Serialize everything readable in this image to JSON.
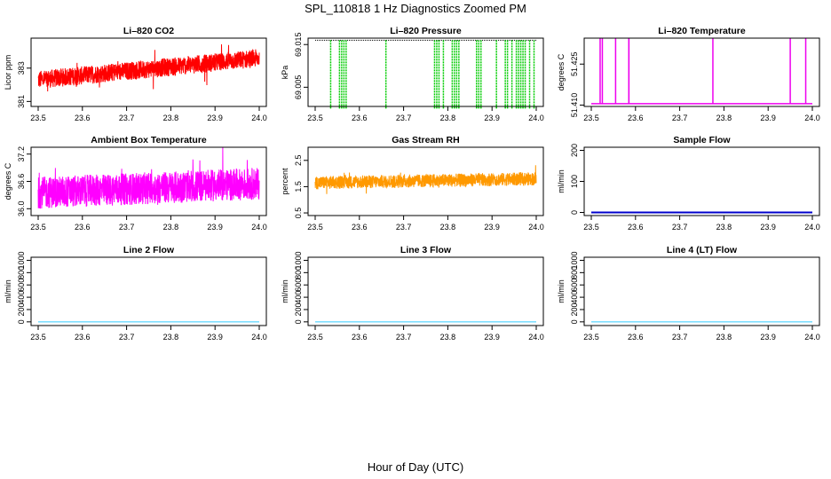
{
  "figure": {
    "title": "SPL_110818  1 Hz Diagnostics Zoomed PM",
    "xlabel": "Hour of Day (UTC)"
  },
  "chart_data": [
    {
      "type": "line",
      "title": "Li–820 CO2",
      "ylabel": "Licor ppm",
      "color": "#ff0000",
      "xlim": [
        23.5,
        24.0
      ],
      "ylim": [
        380.7,
        384.8
      ],
      "xticks": [
        23.5,
        23.6,
        23.7,
        23.8,
        23.9,
        24.0
      ],
      "xtick_labels": [
        "23.5",
        "23.6",
        "23.7",
        "23.8",
        "23.9",
        "24.0"
      ],
      "yticks": [
        381,
        383
      ],
      "ytick_labels": [
        "381",
        "383"
      ],
      "series": [
        {
          "name": "CO2",
          "x": [
            23.5,
            24.0
          ],
          "y": [
            382.3,
            383.6
          ],
          "noise": 0.55
        }
      ]
    },
    {
      "type": "line",
      "title": "Li–820 Pressure",
      "ylabel": "kPa",
      "color": "#00cc00",
      "xlim": [
        23.5,
        24.0
      ],
      "ylim": [
        69.0005,
        69.0165
      ],
      "xticks": [
        23.5,
        23.6,
        23.7,
        23.8,
        23.9,
        24.0
      ],
      "xtick_labels": [
        "23.5",
        "23.6",
        "23.7",
        "23.8",
        "23.9",
        "24.0"
      ],
      "yticks": [
        69.005,
        69.015
      ],
      "ytick_labels": [
        "69.005",
        "69.015"
      ],
      "series": [
        {
          "name": "pressure",
          "x": [
            23.5,
            24.0
          ],
          "y": [
            69.016,
            69.016
          ],
          "low": 69.0,
          "dropouts": [
            23.535,
            23.555,
            23.56,
            23.565,
            23.57,
            23.66,
            23.77,
            23.775,
            23.78,
            23.79,
            23.81,
            23.815,
            23.82,
            23.825,
            23.865,
            23.87,
            23.875,
            23.91,
            23.93,
            23.935,
            23.945,
            23.955,
            23.96,
            23.965,
            23.97,
            23.975,
            23.985,
            23.995
          ]
        }
      ]
    },
    {
      "type": "line",
      "title": "Li–820 Temperature",
      "ylabel": "degrees C",
      "color": "#ee00ee",
      "xlim": [
        23.5,
        24.0
      ],
      "ylim": [
        51.4095,
        51.4345
      ],
      "xticks": [
        23.5,
        23.6,
        23.7,
        23.8,
        23.9,
        24.0
      ],
      "xtick_labels": [
        "23.5",
        "23.6",
        "23.7",
        "23.8",
        "23.9",
        "24.0"
      ],
      "yticks": [
        51.41,
        51.425
      ],
      "ytick_labels": [
        "51.410",
        "51.425"
      ],
      "series": [
        {
          "name": "temperature",
          "x": [
            23.5,
            24.0
          ],
          "y": [
            51.4105,
            51.4105
          ],
          "high": 51.4345,
          "spikes": [
            23.52,
            23.525,
            23.555,
            23.585,
            23.585,
            23.775,
            23.95,
            23.985
          ]
        }
      ]
    },
    {
      "type": "line",
      "title": "Ambient Box Temperature",
      "ylabel": "degrees C",
      "color": "#ff00ff",
      "xlim": [
        23.5,
        24.0
      ],
      "ylim": [
        35.85,
        37.35
      ],
      "xticks": [
        23.5,
        23.6,
        23.7,
        23.8,
        23.9,
        24.0
      ],
      "xtick_labels": [
        "23.5",
        "23.6",
        "23.7",
        "23.8",
        "23.9",
        "24.0"
      ],
      "yticks": [
        36.0,
        36.6,
        37.2
      ],
      "ytick_labels": [
        "36.0",
        "36.6",
        "37.2"
      ],
      "series": [
        {
          "name": "box_temp",
          "x": [
            23.5,
            24.0
          ],
          "y": [
            36.35,
            36.55
          ],
          "noise": 0.35
        }
      ]
    },
    {
      "type": "line",
      "title": "Gas Stream RH",
      "ylabel": "percent",
      "color": "#ff9900",
      "xlim": [
        23.5,
        24.0
      ],
      "ylim": [
        0.4,
        3.0
      ],
      "xticks": [
        23.5,
        23.6,
        23.7,
        23.8,
        23.9,
        24.0
      ],
      "xtick_labels": [
        "23.5",
        "23.6",
        "23.7",
        "23.8",
        "23.9",
        "24.0"
      ],
      "yticks": [
        0.5,
        1.5,
        2.5
      ],
      "ytick_labels": [
        "0.5",
        "1.5",
        "2.5"
      ],
      "series": [
        {
          "name": "rh",
          "x": [
            23.5,
            24.0
          ],
          "y": [
            1.65,
            1.8
          ],
          "noise": 0.25
        }
      ]
    },
    {
      "type": "line",
      "title": "Sample Flow",
      "ylabel": "ml/min",
      "color": "#0000cc",
      "xlim": [
        23.5,
        24.0
      ],
      "ylim": [
        -10,
        210
      ],
      "xticks": [
        23.5,
        23.6,
        23.7,
        23.8,
        23.9,
        24.0
      ],
      "xtick_labels": [
        "23.5",
        "23.6",
        "23.7",
        "23.8",
        "23.9",
        "24.0"
      ],
      "yticks": [
        0,
        100,
        200
      ],
      "ytick_labels": [
        "0",
        "100",
        "200"
      ],
      "series": [
        {
          "name": "sample_flow",
          "x": [
            23.5,
            24.0
          ],
          "y": [
            0,
            0
          ]
        }
      ]
    },
    {
      "type": "line",
      "title": "Line 2 Flow",
      "ylabel": "ml/min",
      "color": "#33ccff",
      "xlim": [
        23.5,
        24.0
      ],
      "ylim": [
        -60,
        1050
      ],
      "xticks": [
        23.5,
        23.6,
        23.7,
        23.8,
        23.9,
        24.0
      ],
      "xtick_labels": [
        "23.5",
        "23.6",
        "23.7",
        "23.8",
        "23.9",
        "24.0"
      ],
      "yticks": [
        0,
        200,
        400,
        600,
        800,
        1000
      ],
      "ytick_labels": [
        "0",
        "200",
        "400",
        "600",
        "800",
        "1000"
      ],
      "series": [
        {
          "name": "line2_flow",
          "x": [
            23.5,
            24.0
          ],
          "y": [
            0,
            0
          ]
        }
      ]
    },
    {
      "type": "line",
      "title": "Line 3 Flow",
      "ylabel": "ml/min",
      "color": "#33ccff",
      "xlim": [
        23.5,
        24.0
      ],
      "ylim": [
        -60,
        1050
      ],
      "xticks": [
        23.5,
        23.6,
        23.7,
        23.8,
        23.9,
        24.0
      ],
      "xtick_labels": [
        "23.5",
        "23.6",
        "23.7",
        "23.8",
        "23.9",
        "24.0"
      ],
      "yticks": [
        0,
        200,
        400,
        600,
        800,
        1000
      ],
      "ytick_labels": [
        "0",
        "200",
        "400",
        "600",
        "800",
        "1000"
      ],
      "series": [
        {
          "name": "line3_flow",
          "x": [
            23.5,
            24.0
          ],
          "y": [
            0,
            0
          ]
        }
      ]
    },
    {
      "type": "line",
      "title": "Line 4 (LT) Flow",
      "ylabel": "ml/min",
      "color": "#33ccff",
      "xlim": [
        23.5,
        24.0
      ],
      "ylim": [
        -60,
        1050
      ],
      "xticks": [
        23.5,
        23.6,
        23.7,
        23.8,
        23.9,
        24.0
      ],
      "xtick_labels": [
        "23.5",
        "23.6",
        "23.7",
        "23.8",
        "23.9",
        "24.0"
      ],
      "yticks": [
        0,
        200,
        400,
        600,
        800,
        1000
      ],
      "ytick_labels": [
        "0",
        "200",
        "400",
        "600",
        "800",
        "1000"
      ],
      "series": [
        {
          "name": "line4_flow",
          "x": [
            23.5,
            24.0
          ],
          "y": [
            0,
            0
          ]
        }
      ]
    }
  ]
}
